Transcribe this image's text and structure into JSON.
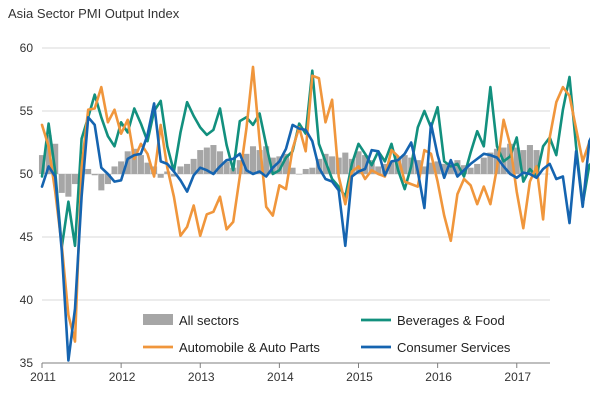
{
  "chart_data": {
    "type": "line",
    "title": "Asia Sector PMI Output  Index",
    "ylim": [
      35,
      60
    ],
    "yticks": [
      35,
      40,
      45,
      50,
      55,
      60
    ],
    "x_tick_labels": [
      "2011",
      "2012",
      "2013",
      "2014",
      "2015",
      "2016",
      "2017"
    ],
    "x_start": 2011.0,
    "x_step": 0.08333,
    "bar_baseline": 50,
    "legend_position": "lower-center inside plot",
    "series": [
      {
        "name": "All sectors",
        "kind": "bar",
        "color": "#a6a6a6",
        "values": [
          51.5,
          53.1,
          52.4,
          48.5,
          48.2,
          49.2,
          50.2,
          50.4,
          49.9,
          48.7,
          49.2,
          50.6,
          51.0,
          51.8,
          52.0,
          51.5,
          50.9,
          50.6,
          49.7,
          50.2,
          49.8,
          50.6,
          50.8,
          51.2,
          51.9,
          52.1,
          52.3,
          51.8,
          51.0,
          50.5,
          51.1,
          51.6,
          52.2,
          51.9,
          52.2,
          51.3,
          51.4,
          51.6,
          50.5,
          50.0,
          50.4,
          50.5,
          51.2,
          51.6,
          51.4,
          51.3,
          51.7,
          51.2,
          51.8,
          51.5,
          51.1,
          50.6,
          50.8,
          51.0,
          51.4,
          51.5,
          51.3,
          51.1,
          50.6,
          50.9,
          51.0,
          50.8,
          50.9,
          51.1,
          50.7,
          50.5,
          50.8,
          51.3,
          51.7,
          52.0,
          52.1,
          52.4,
          52.1,
          51.9,
          52.3,
          51.9
        ]
      },
      {
        "name": "Beverages & Food",
        "kind": "line",
        "color": "#12907e",
        "values": [
          49.8,
          54.0,
          50.2,
          44.2,
          47.8,
          44.3,
          52.8,
          54.5,
          56.3,
          54.5,
          53.0,
          52.2,
          54.1,
          53.3,
          55.2,
          54.0,
          52.6,
          55.0,
          55.8,
          52.2,
          50.2,
          53.3,
          55.7,
          54.6,
          53.7,
          53.1,
          53.5,
          55.2,
          52.3,
          50.3,
          54.2,
          54.5,
          53.9,
          54.8,
          52.3,
          50.0,
          50.3,
          51.3,
          51.8,
          54.0,
          53.2,
          58.2,
          52.4,
          51.0,
          49.6,
          49.0,
          48.2,
          50.8,
          52.4,
          51.6,
          50.7,
          51.8,
          51.0,
          52.4,
          50.3,
          48.8,
          50.6,
          53.7,
          55.0,
          53.7,
          55.3,
          51.0,
          50.6,
          50.8,
          49.8,
          51.7,
          53.4,
          52.2,
          56.9,
          52.2,
          51.0,
          51.4,
          52.9,
          49.4,
          50.4,
          49.8,
          52.2,
          52.9,
          51.5,
          55.1,
          57.7,
          52.2,
          47.6,
          50.7,
          51.2,
          51.8
        ]
      },
      {
        "name": "Automobile & Auto Parts",
        "kind": "line",
        "color": "#f0963c",
        "values": [
          53.9,
          52.2,
          48.6,
          44.3,
          38.8,
          36.7,
          50.5,
          55.1,
          55.2,
          56.9,
          54.1,
          55.1,
          53.2,
          54.3,
          51.2,
          52.4,
          51.6,
          49.8,
          53.9,
          50.5,
          48.2,
          45.1,
          45.8,
          47.5,
          45.1,
          46.8,
          47.0,
          48.2,
          45.6,
          46.2,
          49.8,
          53.6,
          58.5,
          52.6,
          47.4,
          46.7,
          49.1,
          48.8,
          52.0,
          53.7,
          51.8,
          57.8,
          57.6,
          54.1,
          55.9,
          49.8,
          47.6,
          50.2,
          50.6,
          49.6,
          50.3,
          50.0,
          49.8,
          51.9,
          51.4,
          49.4,
          49.2,
          49.0,
          51.9,
          51.6,
          49.4,
          46.7,
          44.7,
          48.4,
          49.6,
          49.1,
          47.6,
          49.0,
          47.6,
          50.5,
          54.3,
          52.3,
          48.6,
          45.7,
          49.4,
          50.6,
          46.4,
          52.9,
          55.7,
          56.9,
          56.2,
          53.6,
          51.0,
          52.5,
          53.6,
          52.0
        ]
      },
      {
        "name": "Consumer Services",
        "kind": "line",
        "color": "#1564b0",
        "values": [
          49.0,
          50.6,
          49.8,
          43.9,
          35.2,
          39.3,
          48.2,
          54.5,
          53.9,
          50.5,
          50.0,
          49.4,
          49.5,
          51.2,
          51.5,
          51.6,
          53.1,
          55.6,
          51.0,
          50.8,
          50.2,
          49.5,
          48.6,
          49.9,
          50.5,
          50.3,
          50.0,
          50.6,
          51.1,
          51.2,
          51.6,
          50.3,
          50.0,
          50.2,
          49.8,
          50.5,
          51.0,
          52.0,
          53.9,
          53.6,
          53.5,
          52.6,
          50.5,
          49.6,
          49.4,
          48.7,
          44.3,
          49.8,
          50.2,
          50.4,
          51.9,
          51.8,
          49.9,
          51.0,
          51.1,
          51.6,
          52.5,
          50.2,
          47.3,
          54.0,
          51.5,
          49.7,
          51.1,
          49.8,
          50.3,
          50.8,
          51.2,
          51.6,
          51.5,
          51.3,
          50.6,
          50.0,
          49.7,
          50.1,
          50.0,
          49.7,
          50.4,
          50.8,
          49.6,
          49.8,
          46.1,
          51.8,
          47.4,
          52.6,
          53.6,
          52.8
        ]
      }
    ]
  }
}
